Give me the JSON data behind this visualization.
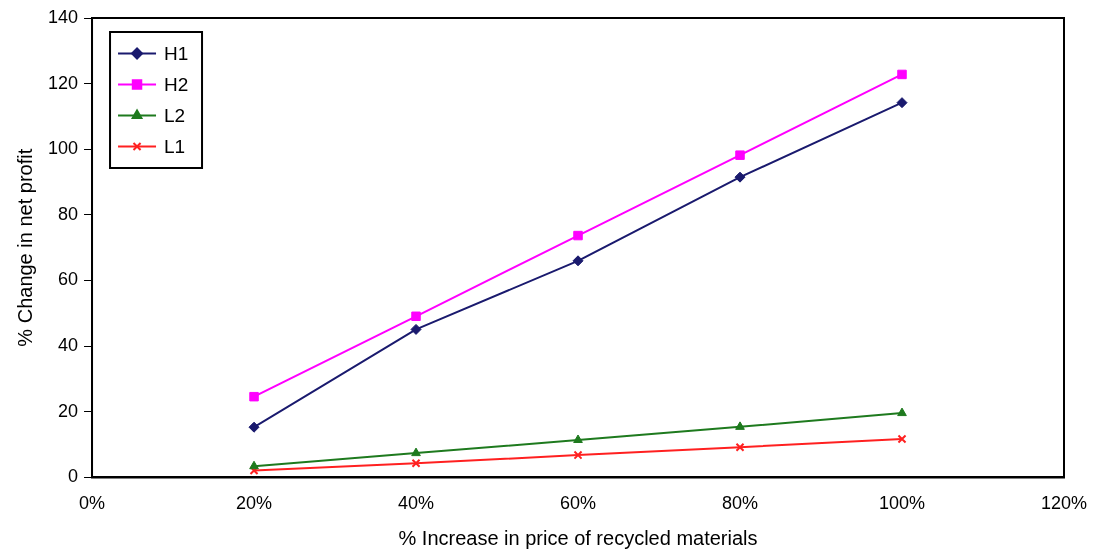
{
  "chart_data": {
    "type": "line",
    "xlabel": "% Increase in price of recycled materials",
    "ylabel": "% Change in net profit",
    "x": [
      20,
      40,
      60,
      80,
      100
    ],
    "series": [
      {
        "name": "H1",
        "color": "#1a1a6e",
        "marker": "diamond",
        "values": [
          15.3,
          45.1,
          66,
          91.5,
          114.2
        ]
      },
      {
        "name": "H2",
        "color": "#ff00ff",
        "marker": "square",
        "values": [
          24.6,
          49.1,
          73.7,
          98.2,
          122.8
        ]
      },
      {
        "name": "L2",
        "color": "#1e7a1e",
        "marker": "triangle",
        "values": [
          3.4,
          7.4,
          11.4,
          15.4,
          19.6
        ]
      },
      {
        "name": "L1",
        "color": "#ff2020",
        "marker": "cross",
        "values": [
          2.1,
          4.3,
          6.8,
          9.2,
          11.7
        ]
      }
    ],
    "xlim": [
      0,
      120
    ],
    "xticks": [
      {
        "value": 0,
        "label": "0%"
      },
      {
        "value": 20,
        "label": "20%"
      },
      {
        "value": 40,
        "label": "40%"
      },
      {
        "value": 60,
        "label": "60%"
      },
      {
        "value": 80,
        "label": "80%"
      },
      {
        "value": 100,
        "label": "100%"
      },
      {
        "value": 120,
        "label": "120%"
      }
    ],
    "ylim": [
      0,
      140
    ],
    "yticks": [
      0,
      20,
      40,
      60,
      80,
      100,
      120,
      140
    ],
    "grid": false,
    "legend": "top left",
    "line_style": "solid"
  }
}
